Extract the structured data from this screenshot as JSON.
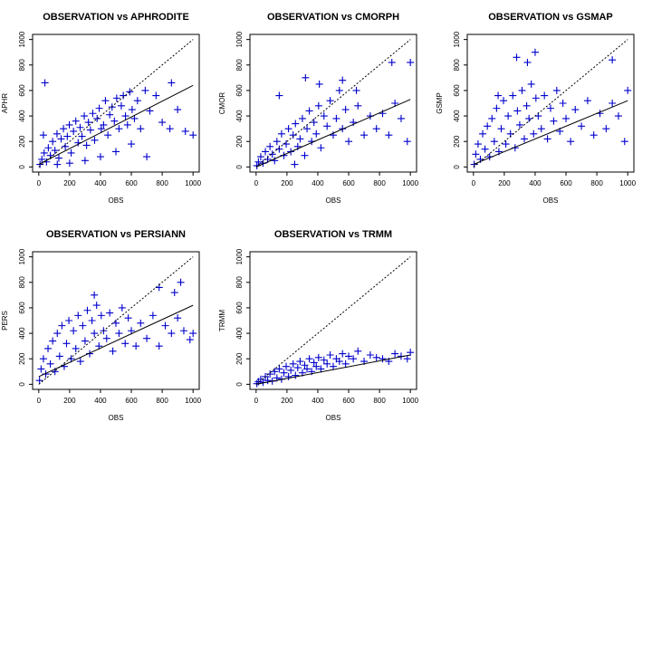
{
  "figure": {
    "background": "#ffffff",
    "point_color": "#0000cc",
    "line_color": "#000000"
  },
  "chart_data": [
    {
      "type": "scatter",
      "title": "OBSERVATION vs APHRODITE",
      "xlabel": "OBS",
      "ylabel": "APHR",
      "xlim": [
        0,
        1000
      ],
      "ylim": [
        0,
        1000
      ],
      "xticks": [
        "0",
        "200",
        "400",
        "600",
        "800",
        "1000"
      ],
      "yticks": [
        "0",
        "200",
        "400",
        "600",
        "800",
        "1000"
      ],
      "marker": "+",
      "grid": false,
      "series": [
        {
          "x": [
            8,
            20,
            35,
            50,
            62,
            75,
            90,
            105,
            118,
            130,
            145,
            160,
            172,
            185,
            198,
            210,
            225,
            240,
            255,
            268,
            280,
            295,
            310,
            322,
            335,
            350,
            362,
            378,
            392,
            405,
            420,
            432,
            448,
            460,
            475,
            490,
            505,
            520,
            535,
            548,
            562,
            575,
            590,
            605,
            620,
            640,
            660,
            690,
            720,
            760,
            800,
            850,
            900,
            950,
            1000,
            40,
            120,
            200,
            300,
            400,
            500,
            600,
            700,
            30,
            860
          ],
          "y": [
            20,
            60,
            110,
            40,
            150,
            90,
            200,
            130,
            260,
            70,
            220,
            300,
            160,
            240,
            330,
            110,
            280,
            360,
            190,
            310,
            240,
            400,
            170,
            350,
            290,
            420,
            210,
            380,
            460,
            300,
            330,
            520,
            250,
            410,
            470,
            360,
            540,
            300,
            480,
            560,
            400,
            330,
            590,
            450,
            380,
            520,
            300,
            600,
            440,
            560,
            350,
            300,
            450,
            280,
            250,
            660,
            20,
            30,
            50,
            80,
            120,
            180,
            80,
            250,
            660
          ]
        },
        {
          "kind": "fit-line",
          "x": [
            0,
            1000
          ],
          "y": [
            20,
            640
          ]
        },
        {
          "kind": "reference-line",
          "x": [
            0,
            1000
          ],
          "y": [
            0,
            1000
          ]
        }
      ]
    },
    {
      "type": "scatter",
      "title": "OBSERVATION vs CMORPH",
      "xlabel": "OBS",
      "ylabel": "CMOR",
      "xlim": [
        0,
        1000
      ],
      "ylim": [
        0,
        1000
      ],
      "xticks": [
        "0",
        "200",
        "400",
        "600",
        "800",
        "1000"
      ],
      "yticks": [
        "0",
        "200",
        "400",
        "600",
        "800",
        "1000"
      ],
      "marker": "+",
      "grid": false,
      "series": [
        {
          "x": [
            5,
            15,
            30,
            45,
            60,
            75,
            90,
            105,
            120,
            135,
            150,
            165,
            180,
            195,
            210,
            225,
            240,
            255,
            270,
            285,
            300,
            315,
            330,
            345,
            360,
            375,
            390,
            405,
            420,
            440,
            460,
            480,
            500,
            520,
            540,
            560,
            580,
            600,
            630,
            660,
            700,
            740,
            780,
            820,
            860,
            900,
            940,
            980,
            1000,
            320,
            410,
            560,
            650,
            880,
            250,
            150
          ],
          "y": [
            10,
            40,
            80,
            30,
            120,
            60,
            160,
            100,
            50,
            200,
            140,
            260,
            90,
            180,
            300,
            120,
            250,
            340,
            160,
            220,
            380,
            90,
            300,
            440,
            200,
            350,
            260,
            480,
            150,
            400,
            320,
            520,
            250,
            380,
            600,
            300,
            450,
            200,
            350,
            480,
            250,
            400,
            300,
            420,
            250,
            500,
            380,
            200,
            820,
            700,
            650,
            680,
            600,
            820,
            20,
            560
          ]
        },
        {
          "kind": "fit-line",
          "x": [
            0,
            1000
          ],
          "y": [
            0,
            530
          ]
        },
        {
          "kind": "reference-line",
          "x": [
            0,
            1000
          ],
          "y": [
            0,
            1000
          ]
        }
      ]
    },
    {
      "type": "scatter",
      "title": "OBSERVATION vs GSMAP",
      "xlabel": "OBS",
      "ylabel": "GSMP",
      "xlim": [
        0,
        1000
      ],
      "ylim": [
        0,
        1000
      ],
      "xticks": [
        "0",
        "200",
        "400",
        "600",
        "800",
        "1000"
      ],
      "yticks": [
        "0",
        "200",
        "400",
        "600",
        "800",
        "1000"
      ],
      "marker": "+",
      "grid": false,
      "series": [
        {
          "x": [
            5,
            15,
            30,
            45,
            60,
            75,
            90,
            105,
            120,
            135,
            150,
            165,
            180,
            195,
            210,
            225,
            240,
            255,
            270,
            285,
            300,
            315,
            330,
            345,
            360,
            375,
            390,
            405,
            420,
            440,
            460,
            480,
            500,
            520,
            540,
            560,
            580,
            600,
            630,
            660,
            700,
            740,
            780,
            820,
            860,
            900,
            940,
            980,
            1000,
            400,
            280,
            350,
            900,
            160
          ],
          "y": [
            20,
            100,
            180,
            60,
            260,
            140,
            320,
            80,
            380,
            200,
            460,
            120,
            300,
            520,
            180,
            400,
            260,
            560,
            150,
            440,
            330,
            600,
            220,
            480,
            380,
            650,
            260,
            540,
            400,
            300,
            560,
            220,
            460,
            360,
            600,
            280,
            500,
            380,
            200,
            450,
            320,
            520,
            250,
            420,
            300,
            500,
            400,
            200,
            600,
            900,
            860,
            820,
            840,
            560
          ]
        },
        {
          "kind": "fit-line",
          "x": [
            0,
            1000
          ],
          "y": [
            20,
            520
          ]
        },
        {
          "kind": "reference-line",
          "x": [
            0,
            1000
          ],
          "y": [
            0,
            1000
          ]
        }
      ]
    },
    {
      "type": "scatter",
      "title": "OBSERVATION vs PERSIANN",
      "xlabel": "OBS",
      "ylabel": "PERS",
      "xlim": [
        0,
        1000
      ],
      "ylim": [
        0,
        1000
      ],
      "xticks": [
        "0",
        "200",
        "400",
        "600",
        "800",
        "1000"
      ],
      "yticks": [
        "0",
        "200",
        "400",
        "600",
        "800",
        "1000"
      ],
      "marker": "+",
      "grid": false,
      "series": [
        {
          "x": [
            5,
            15,
            30,
            45,
            60,
            75,
            90,
            105,
            120,
            135,
            150,
            165,
            180,
            195,
            210,
            225,
            240,
            255,
            270,
            285,
            300,
            315,
            330,
            345,
            360,
            375,
            390,
            405,
            420,
            440,
            460,
            480,
            500,
            520,
            540,
            560,
            580,
            600,
            630,
            660,
            700,
            740,
            780,
            820,
            860,
            900,
            940,
            980,
            1000,
            360,
            920,
            780,
            880
          ],
          "y": [
            30,
            120,
            200,
            80,
            280,
            160,
            340,
            100,
            400,
            220,
            460,
            140,
            320,
            500,
            200,
            420,
            280,
            540,
            180,
            460,
            340,
            580,
            240,
            500,
            400,
            620,
            300,
            540,
            420,
            360,
            560,
            260,
            480,
            400,
            600,
            320,
            520,
            420,
            300,
            480,
            360,
            540,
            300,
            460,
            400,
            520,
            420,
            350,
            400,
            700,
            800,
            760,
            720
          ]
        },
        {
          "kind": "fit-line",
          "x": [
            0,
            1000
          ],
          "y": [
            60,
            620
          ]
        },
        {
          "kind": "reference-line",
          "x": [
            0,
            1000
          ],
          "y": [
            0,
            1000
          ]
        }
      ]
    },
    {
      "type": "scatter",
      "title": "OBSERVATION vs TRMM",
      "xlabel": "OBS",
      "ylabel": "TRMM",
      "xlim": [
        0,
        1000
      ],
      "ylim": [
        0,
        1000
      ],
      "xticks": [
        "0",
        "200",
        "400",
        "600",
        "800",
        "1000"
      ],
      "yticks": [
        "0",
        "200",
        "400",
        "600",
        "800",
        "1000"
      ],
      "marker": "+",
      "grid": false,
      "series": [
        {
          "x": [
            5,
            15,
            30,
            45,
            60,
            75,
            90,
            105,
            120,
            135,
            150,
            165,
            180,
            195,
            210,
            225,
            240,
            255,
            270,
            285,
            300,
            315,
            330,
            345,
            360,
            375,
            390,
            405,
            420,
            440,
            460,
            480,
            500,
            520,
            540,
            560,
            580,
            600,
            630,
            660,
            700,
            740,
            780,
            820,
            860,
            900,
            940,
            980,
            1000
          ],
          "y": [
            5,
            20,
            40,
            15,
            60,
            30,
            80,
            25,
            100,
            50,
            120,
            40,
            90,
            140,
            60,
            110,
            160,
            70,
            130,
            180,
            90,
            150,
            120,
            200,
            100,
            170,
            140,
            210,
            120,
            190,
            160,
            230,
            140,
            200,
            180,
            240,
            160,
            220,
            200,
            260,
            180,
            230,
            210,
            200,
            180,
            240,
            220,
            200,
            250
          ]
        },
        {
          "kind": "fit-line",
          "x": [
            0,
            1000
          ],
          "y": [
            0,
            230
          ]
        },
        {
          "kind": "reference-line",
          "x": [
            0,
            1000
          ],
          "y": [
            0,
            1000
          ]
        }
      ]
    }
  ]
}
